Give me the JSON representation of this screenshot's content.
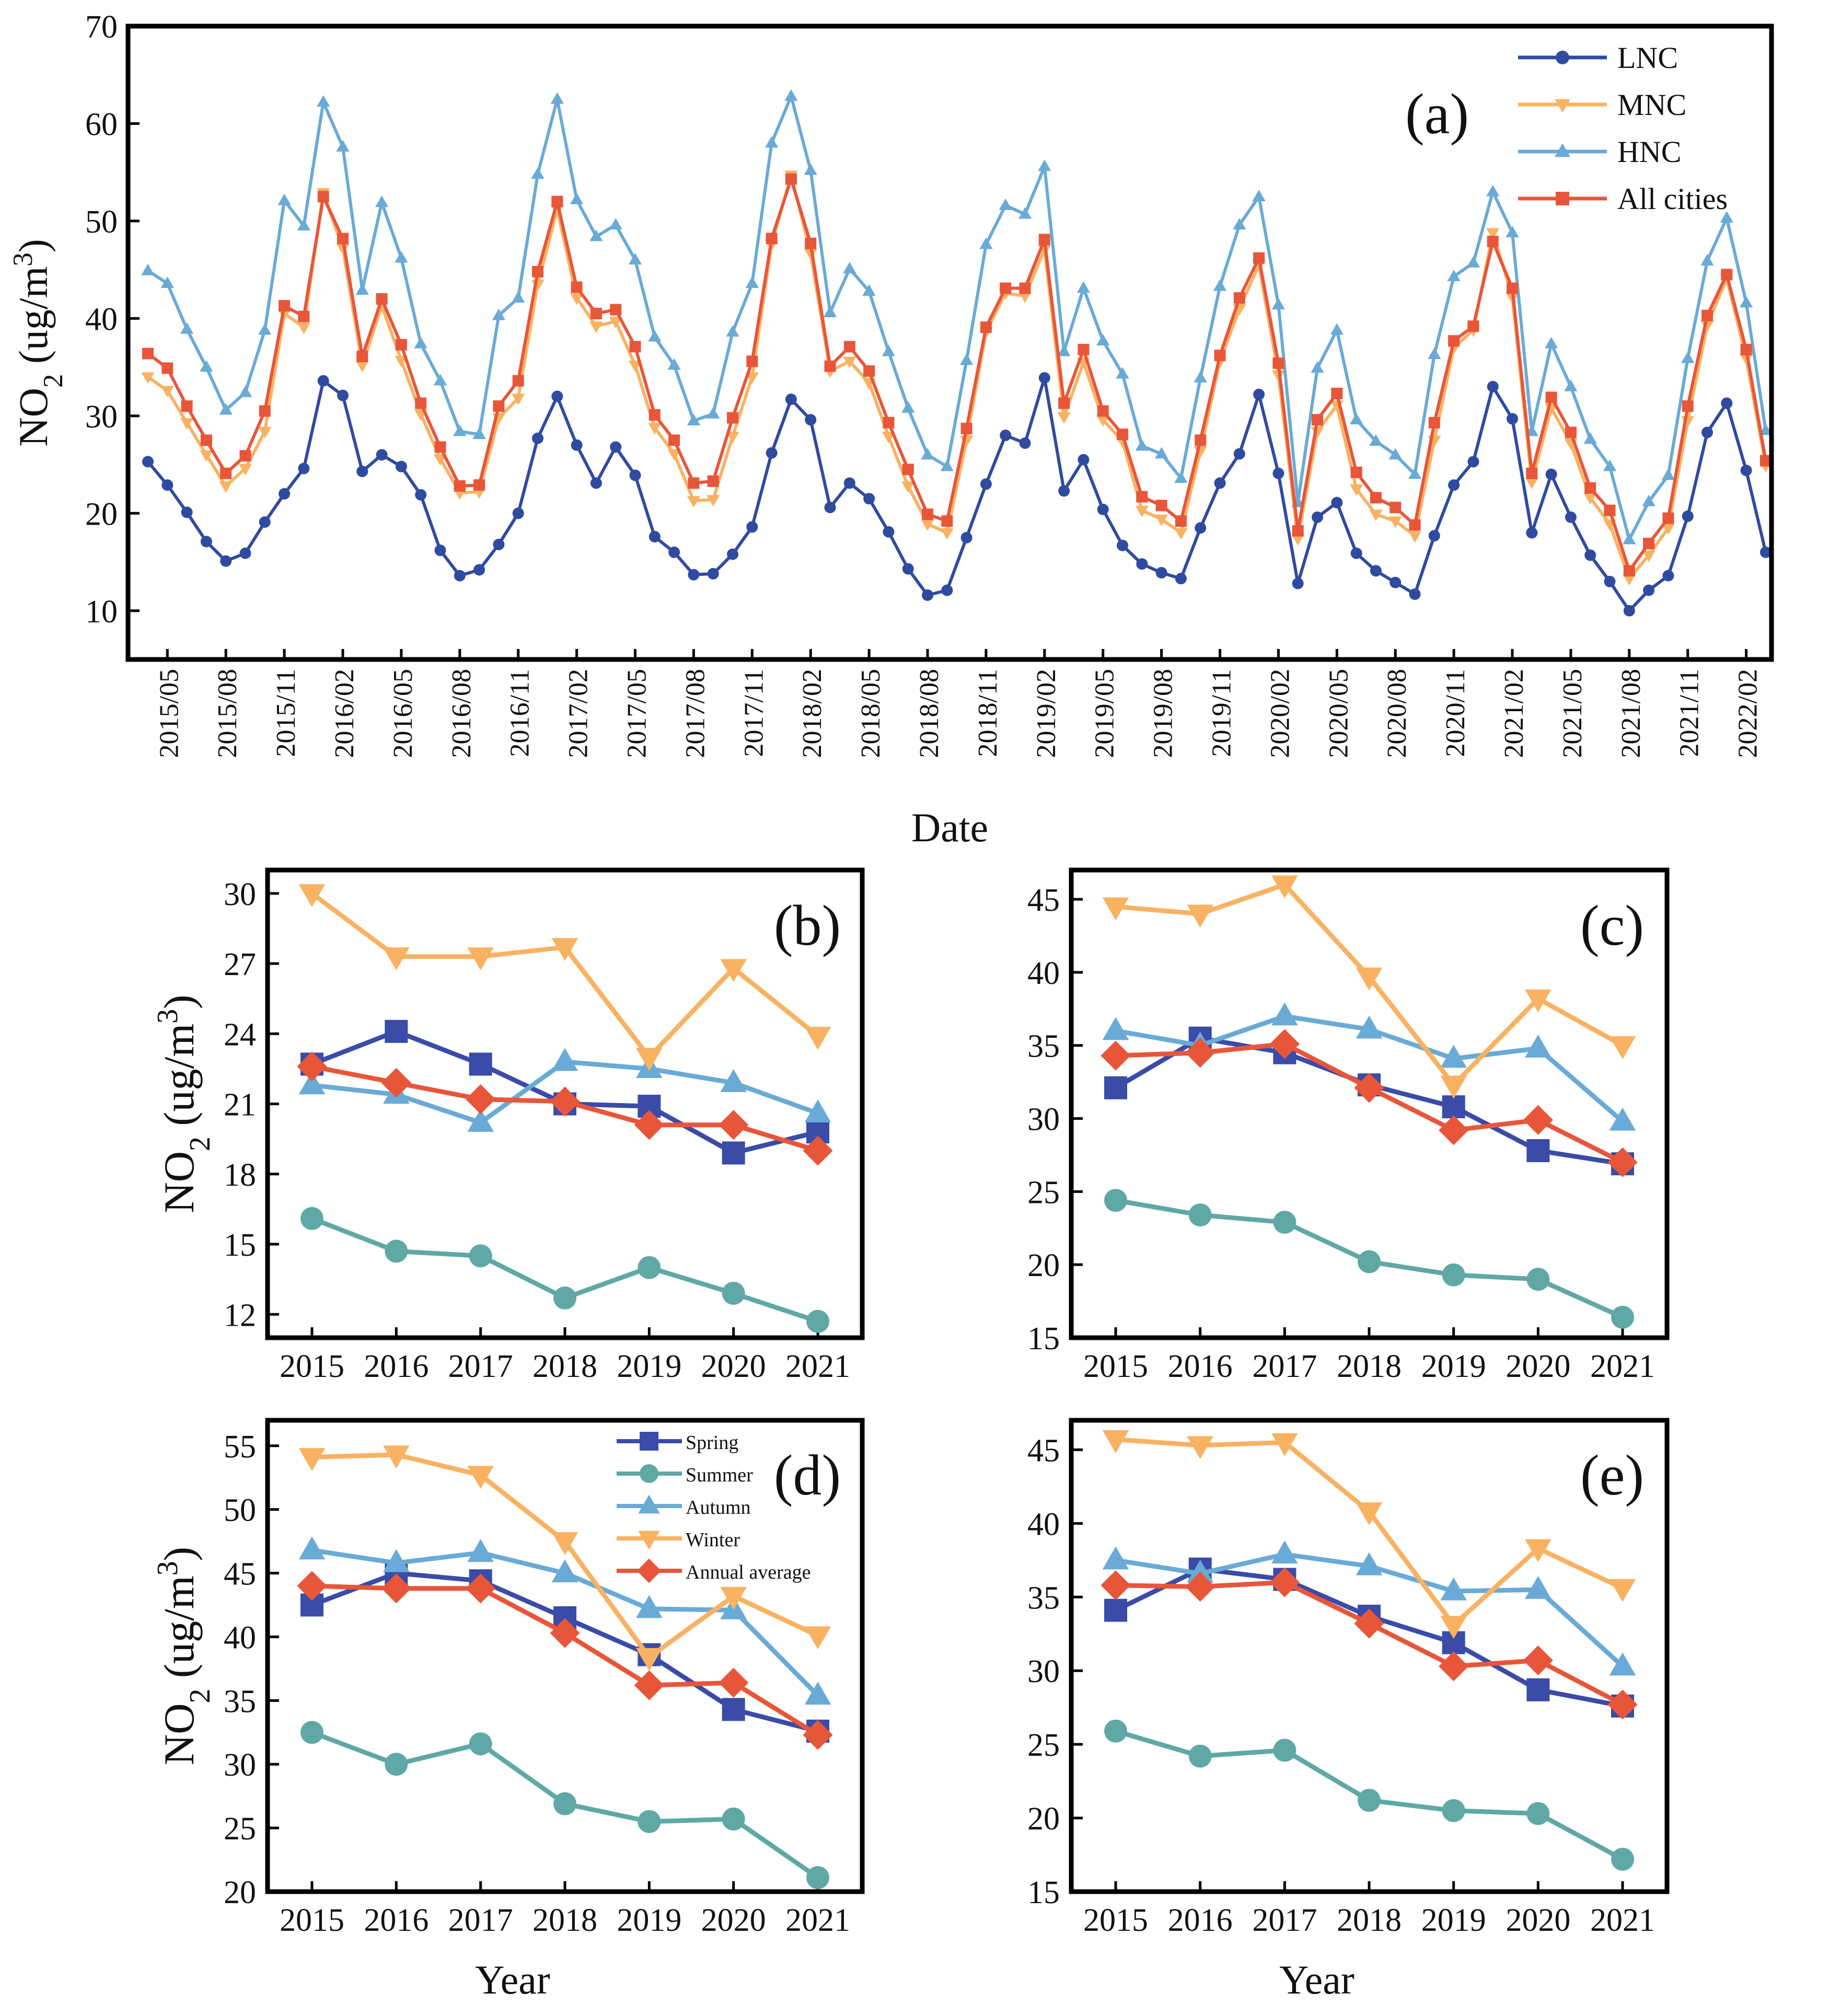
{
  "chart_data": [
    {
      "id": "a",
      "panel_label": "(a)",
      "type": "line",
      "title": "",
      "xlabel": "Date",
      "ylabel": "NO2 (ug/m3)",
      "ylim": [
        5,
        70
      ],
      "yticks": [
        10,
        20,
        30,
        40,
        50,
        60,
        70
      ],
      "xtick_labels": [
        "2015/05",
        "2015/08",
        "2015/11",
        "2016/02",
        "2016/05",
        "2016/08",
        "2016/11",
        "2017/02",
        "2017/05",
        "2017/08",
        "2017/11",
        "2018/02",
        "2018/05",
        "2018/08",
        "2018/11",
        "2019/02",
        "2019/05",
        "2019/08",
        "2019/11",
        "2020/02",
        "2020/05",
        "2020/08",
        "2020/11",
        "2021/02",
        "2021/05",
        "2021/08",
        "2021/11",
        "2022/02"
      ],
      "x_start": "2015/04",
      "legend_position": "top-right",
      "series": [
        {
          "name": "LNC",
          "color": "#2f4ba0",
          "marker": "circle",
          "values": [
            25.3,
            22.9,
            20.1,
            17.1,
            15.1,
            15.9,
            19.1,
            22.0,
            24.6,
            33.6,
            32.1,
            24.3,
            26.0,
            24.8,
            21.9,
            16.2,
            13.6,
            14.2,
            16.8,
            20.0,
            27.7,
            32.0,
            27.0,
            23.1,
            26.8,
            23.9,
            17.6,
            16.0,
            13.7,
            13.8,
            15.8,
            18.6,
            26.2,
            31.7,
            29.6,
            20.6,
            23.1,
            21.5,
            18.1,
            14.3,
            11.6,
            12.1,
            17.5,
            23.0,
            28.0,
            27.2,
            33.9,
            22.3,
            25.5,
            20.4,
            16.7,
            14.8,
            13.9,
            13.3,
            18.5,
            23.1,
            26.1,
            32.2,
            24.1,
            12.8,
            19.6,
            21.1,
            15.9,
            14.1,
            12.9,
            11.7,
            17.7,
            22.9,
            25.3,
            33.0,
            29.7,
            18.0,
            24.0,
            19.6,
            15.7,
            13.0,
            10.0,
            12.1,
            13.6,
            19.7,
            28.3,
            31.3,
            24.4,
            16.0
          ]
        },
        {
          "name": "MNC",
          "color": "#f9b262",
          "marker": "triangle-down",
          "values": [
            34.0,
            32.6,
            29.3,
            26.0,
            22.8,
            24.6,
            28.4,
            40.5,
            39.1,
            52.9,
            47.2,
            35.2,
            41.3,
            35.7,
            30.2,
            25.6,
            22.1,
            22.2,
            29.8,
            31.8,
            43.5,
            51.2,
            42.1,
            39.2,
            39.7,
            35.2,
            28.8,
            26.1,
            21.3,
            21.4,
            27.9,
            34.0,
            47.6,
            54.7,
            46.7,
            34.6,
            35.6,
            33.4,
            27.9,
            22.8,
            18.9,
            18.0,
            27.5,
            38.6,
            42.6,
            42.3,
            47.1,
            29.9,
            35.5,
            29.6,
            27.4,
            20.3,
            19.4,
            18.0,
            26.4,
            35.6,
            41.0,
            45.5,
            34.2,
            17.4,
            28.4,
            31.1,
            22.5,
            19.9,
            19.2,
            17.7,
            27.5,
            37.0,
            38.8,
            48.8,
            42.2,
            23.2,
            30.8,
            27.2,
            21.6,
            18.9,
            13.3,
            15.7,
            18.5,
            29.5,
            39.3,
            44.1,
            35.9,
            24.9
          ]
        },
        {
          "name": "HNC",
          "color": "#6aaad6",
          "marker": "triangle-up",
          "values": [
            44.9,
            43.6,
            38.9,
            35.0,
            30.6,
            32.4,
            38.8,
            52.1,
            49.5,
            62.2,
            57.6,
            42.9,
            51.9,
            46.2,
            37.4,
            33.6,
            28.4,
            28.1,
            40.3,
            42.1,
            54.8,
            62.5,
            52.2,
            48.4,
            49.6,
            46.0,
            38.1,
            35.2,
            29.5,
            30.2,
            38.6,
            43.6,
            58.0,
            62.8,
            55.2,
            40.6,
            45.1,
            42.8,
            36.6,
            30.8,
            26.0,
            24.8,
            35.7,
            47.6,
            51.6,
            50.7,
            55.6,
            36.6,
            43.1,
            37.7,
            34.3,
            26.9,
            26.1,
            23.6,
            33.9,
            43.3,
            49.6,
            52.5,
            41.4,
            21.1,
            34.9,
            38.8,
            29.6,
            27.4,
            26.0,
            24.0,
            36.3,
            44.3,
            45.7,
            53.0,
            48.8,
            28.4,
            37.4,
            33.0,
            27.6,
            24.8,
            17.3,
            21.2,
            23.9,
            35.9,
            45.9,
            50.3,
            41.6,
            28.5
          ]
        },
        {
          "name": "All cities",
          "color": "#e8563a",
          "marker": "square",
          "values": [
            36.4,
            34.9,
            31.0,
            27.5,
            24.1,
            25.9,
            30.5,
            41.3,
            40.2,
            52.5,
            48.2,
            36.1,
            42.0,
            37.3,
            31.3,
            26.8,
            22.8,
            22.9,
            31.0,
            33.6,
            44.8,
            52.0,
            43.2,
            40.5,
            40.9,
            37.1,
            30.1,
            27.5,
            23.1,
            23.3,
            29.8,
            35.6,
            48.2,
            54.3,
            47.7,
            35.1,
            37.1,
            34.6,
            29.3,
            24.5,
            19.9,
            19.2,
            28.7,
            39.1,
            43.1,
            43.1,
            48.1,
            31.3,
            36.8,
            30.5,
            28.1,
            21.7,
            20.8,
            19.2,
            27.5,
            36.2,
            42.1,
            46.2,
            35.4,
            18.2,
            29.6,
            32.3,
            24.2,
            21.6,
            20.6,
            18.8,
            29.3,
            37.7,
            39.2,
            47.9,
            43.1,
            24.1,
            31.9,
            28.3,
            22.6,
            20.3,
            14.1,
            16.9,
            19.5,
            31.0,
            40.3,
            44.5,
            36.8,
            25.4
          ]
        }
      ]
    },
    {
      "id": "b",
      "panel_label": "(b)",
      "type": "line",
      "xlabel": "",
      "ylabel": "NO2 (ug/m3)",
      "categories": [
        "2015",
        "2016",
        "2017",
        "2018",
        "2019",
        "2020",
        "2021"
      ],
      "ylim": [
        11,
        31
      ],
      "yticks": [
        12,
        15,
        18,
        21,
        24,
        27,
        30
      ],
      "series": [
        {
          "name": "Spring",
          "color": "#3a4ba8",
          "marker": "square",
          "values": [
            22.7,
            24.1,
            22.7,
            21.0,
            20.9,
            18.9,
            19.8
          ]
        },
        {
          "name": "Summer",
          "color": "#5fa8a6",
          "marker": "circle",
          "values": [
            16.1,
            14.7,
            14.5,
            12.7,
            14.0,
            12.9,
            11.7
          ]
        },
        {
          "name": "Autumn",
          "color": "#6aaad6",
          "marker": "triangle-up",
          "values": [
            21.8,
            21.4,
            20.2,
            22.8,
            22.5,
            21.9,
            20.6
          ]
        },
        {
          "name": "Winter",
          "color": "#f9b262",
          "marker": "triangle-down",
          "values": [
            30.0,
            27.3,
            27.3,
            27.7,
            23.0,
            26.8,
            23.9
          ]
        },
        {
          "name": "Annual average",
          "color": "#e8563a",
          "marker": "diamond",
          "values": [
            22.6,
            21.9,
            21.2,
            21.1,
            20.1,
            20.1,
            19.0
          ]
        }
      ]
    },
    {
      "id": "c",
      "panel_label": "(c)",
      "type": "line",
      "xlabel": "",
      "ylabel": "NO2 (ug/m3)",
      "categories": [
        "2015",
        "2016",
        "2017",
        "2018",
        "2019",
        "2020",
        "2021"
      ],
      "ylim": [
        15,
        47
      ],
      "yticks": [
        15,
        20,
        25,
        30,
        35,
        40,
        45
      ],
      "series": [
        {
          "name": "Spring",
          "color": "#3a4ba8",
          "marker": "square",
          "values": [
            32.1,
            35.5,
            34.5,
            32.3,
            30.8,
            27.8,
            26.9
          ]
        },
        {
          "name": "Summer",
          "color": "#5fa8a6",
          "marker": "circle",
          "values": [
            24.4,
            23.4,
            22.9,
            20.2,
            19.3,
            19.0,
            16.4
          ]
        },
        {
          "name": "Autumn",
          "color": "#6aaad6",
          "marker": "triangle-up",
          "values": [
            36.0,
            35.0,
            37.0,
            36.1,
            34.1,
            34.8,
            29.8
          ]
        },
        {
          "name": "Winter",
          "color": "#f9b262",
          "marker": "triangle-down",
          "values": [
            44.5,
            44.0,
            46.0,
            39.7,
            32.3,
            38.2,
            35.0
          ]
        },
        {
          "name": "Annual average",
          "color": "#e8563a",
          "marker": "diamond",
          "values": [
            34.3,
            34.5,
            35.1,
            32.1,
            29.2,
            29.9,
            27.0
          ]
        }
      ]
    },
    {
      "id": "d",
      "panel_label": "(d)",
      "type": "line",
      "xlabel": "Year",
      "ylabel": "NO2 (ug/m3)",
      "categories": [
        "2015",
        "2016",
        "2017",
        "2018",
        "2019",
        "2020",
        "2021"
      ],
      "ylim": [
        20,
        57
      ],
      "yticks": [
        20,
        25,
        30,
        35,
        40,
        45,
        50,
        55
      ],
      "legend_position": "top-center",
      "series": [
        {
          "name": "Spring",
          "color": "#3a4ba8",
          "marker": "square",
          "values": [
            42.5,
            45.0,
            44.4,
            41.5,
            38.6,
            34.3,
            32.6
          ]
        },
        {
          "name": "Summer",
          "color": "#5fa8a6",
          "marker": "circle",
          "values": [
            32.5,
            30.0,
            31.6,
            26.9,
            25.5,
            25.7,
            21.1
          ]
        },
        {
          "name": "Autumn",
          "color": "#6aaad6",
          "marker": "triangle-up",
          "values": [
            46.8,
            45.8,
            46.6,
            45.0,
            42.2,
            42.1,
            35.4
          ]
        },
        {
          "name": "Winter",
          "color": "#f9b262",
          "marker": "triangle-down",
          "values": [
            54.1,
            54.3,
            52.7,
            47.5,
            38.4,
            43.2,
            40.1
          ]
        },
        {
          "name": "Annual average",
          "color": "#e8563a",
          "marker": "diamond",
          "values": [
            44.0,
            43.8,
            43.8,
            40.3,
            36.2,
            36.4,
            32.3
          ]
        }
      ]
    },
    {
      "id": "e",
      "panel_label": "(e)",
      "type": "line",
      "xlabel": "Year",
      "ylabel": "NO2 (ug/m3)",
      "categories": [
        "2015",
        "2016",
        "2017",
        "2018",
        "2019",
        "2020",
        "2021"
      ],
      "ylim": [
        15,
        47
      ],
      "yticks": [
        15,
        20,
        25,
        30,
        35,
        40,
        45
      ],
      "series": [
        {
          "name": "Spring",
          "color": "#3a4ba8",
          "marker": "square",
          "values": [
            34.1,
            36.9,
            36.2,
            33.7,
            31.9,
            28.7,
            27.6
          ]
        },
        {
          "name": "Summer",
          "color": "#5fa8a6",
          "marker": "circle",
          "values": [
            25.9,
            24.2,
            24.6,
            21.2,
            20.5,
            20.3,
            17.2
          ]
        },
        {
          "name": "Autumn",
          "color": "#6aaad6",
          "marker": "triangle-up",
          "values": [
            37.5,
            36.6,
            37.9,
            37.1,
            35.4,
            35.5,
            30.3
          ]
        },
        {
          "name": "Winter",
          "color": "#f9b262",
          "marker": "triangle-down",
          "values": [
            45.7,
            45.3,
            45.5,
            40.8,
            33.1,
            38.3,
            35.6
          ]
        },
        {
          "name": "Annual average",
          "color": "#e8563a",
          "marker": "diamond",
          "values": [
            35.8,
            35.7,
            36.0,
            33.2,
            30.3,
            30.7,
            27.7
          ]
        }
      ]
    }
  ]
}
